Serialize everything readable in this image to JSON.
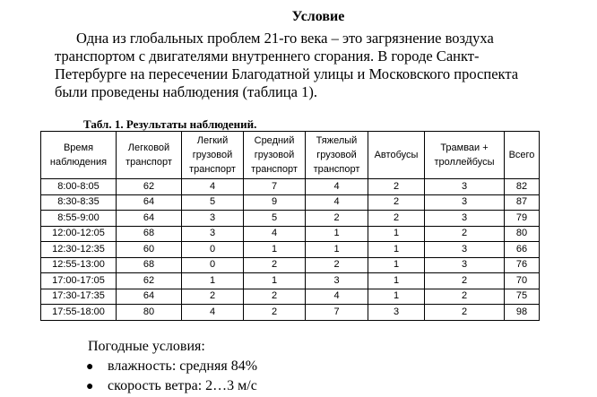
{
  "title": "Условие",
  "paragraph": [
    "Одна из глобальных проблем 21-го века – это загрязнение воздуха",
    "транспортом с двигателями внутреннего сгорания. В городе Санкт-",
    "Петербурге на пересечении Благодатной улицы и Московского проспекта",
    "были проведены наблюдения (таблица 1)."
  ],
  "table": {
    "caption": "Табл. 1. Результаты наблюдений.",
    "header": [
      "Время наблюдения",
      "Легковой транспорт",
      "Легкий грузовой транспорт",
      "Средний грузовой транспорт",
      "Тяжелый грузовой транспорт",
      "Автобусы",
      "Трамваи + троллейбусы",
      "Всего"
    ],
    "rows": [
      [
        "8:00-8:05",
        62,
        4,
        7,
        4,
        2,
        3,
        82
      ],
      [
        "8:30-8:35",
        64,
        5,
        9,
        4,
        2,
        3,
        87
      ],
      [
        "8:55-9:00",
        64,
        3,
        5,
        2,
        2,
        3,
        79
      ],
      [
        "12:00-12:05",
        68,
        3,
        4,
        1,
        1,
        2,
        80
      ],
      [
        "12:30-12:35",
        60,
        0,
        1,
        1,
        1,
        3,
        66
      ],
      [
        "12:55-13:00",
        68,
        0,
        2,
        2,
        1,
        3,
        76
      ],
      [
        "17:00-17:05",
        62,
        1,
        1,
        3,
        1,
        2,
        70
      ],
      [
        "17:30-17:35",
        64,
        2,
        2,
        4,
        1,
        2,
        75
      ],
      [
        "17:55-18:00",
        80,
        4,
        2,
        7,
        3,
        2,
        98
      ]
    ]
  },
  "weather": {
    "heading": "Погодные условия:",
    "items": [
      "влажность: средняя 84%",
      "скорость ветра: 2…3 м/с"
    ]
  }
}
